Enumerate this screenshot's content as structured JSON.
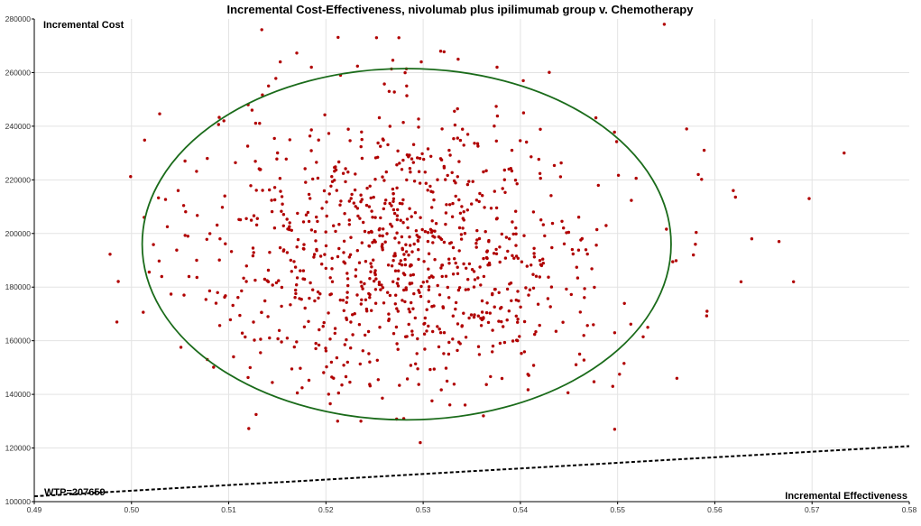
{
  "chart_data": {
    "type": "scatter",
    "title": "Incremental Cost-Effectiveness, nivolumab plus ipilimumab group v. Chemotherapy",
    "xlabel": "Incremental Effectiveness",
    "ylabel": "Incremental Cost",
    "xlim": [
      0.49,
      0.58
    ],
    "ylim": [
      100000,
      280000
    ],
    "x_ticks": [
      "0.49",
      "0.50",
      "0.51",
      "0.52",
      "0.53",
      "0.54",
      "0.55",
      "0.56",
      "0.57",
      "0.58"
    ],
    "y_ticks": [
      "100000",
      "120000",
      "140000",
      "160000",
      "180000",
      "200000",
      "220000",
      "240000",
      "260000",
      "280000"
    ],
    "grid": true,
    "point_color": "#b00000",
    "ellipse_color": "#1a6b1a",
    "confidence_ellipse": {
      "center": [
        0.5283,
        196000
      ],
      "radius_x": 0.0272,
      "radius_y": 65500
    },
    "wtp": {
      "label": "WTP=207659",
      "slope_per_unit_effect": 207659,
      "line": {
        "x": [
          0.49,
          0.58
        ],
        "y": [
          102000,
          120700
        ]
      }
    },
    "n_points": 1000,
    "seed": 20240611,
    "distribution": {
      "mean_x": 0.5283,
      "sd_x": 0.0105,
      "mean_y": 193000,
      "sd_y": 26500
    },
    "series": [
      {
        "values": [
          [
            0.4985,
            167000
          ],
          [
            0.5013,
            206000
          ],
          [
            0.5048,
            216000
          ],
          [
            0.5055,
            227000
          ],
          [
            0.5058,
            199000
          ],
          [
            0.5054,
            177000
          ],
          [
            0.5067,
            190000
          ],
          [
            0.5095,
            242000
          ],
          [
            0.512,
            248000
          ],
          [
            0.5134,
            276000
          ],
          [
            0.5153,
            264000
          ],
          [
            0.5185,
            262000
          ],
          [
            0.5215,
            259000
          ],
          [
            0.5252,
            273000
          ],
          [
            0.5275,
            273000
          ],
          [
            0.5298,
            264000
          ],
          [
            0.5318,
            268000
          ],
          [
            0.5336,
            265000
          ],
          [
            0.5376,
            262000
          ],
          [
            0.5548,
            278000
          ],
          [
            0.5571,
            239000
          ],
          [
            0.5589,
            231000
          ],
          [
            0.5583,
            222000
          ],
          [
            0.558,
            196000
          ],
          [
            0.5578,
            192000
          ],
          [
            0.5592,
            171000
          ],
          [
            0.5561,
            146000
          ],
          [
            0.5531,
            165000
          ],
          [
            0.5619,
            216000
          ],
          [
            0.5638,
            198000
          ],
          [
            0.5627,
            182000
          ],
          [
            0.5666,
            197000
          ],
          [
            0.5681,
            182000
          ],
          [
            0.5697,
            213000
          ],
          [
            0.5733,
            230000
          ],
          [
            0.5497,
            127000
          ],
          [
            0.5297,
            122000
          ],
          [
            0.5362,
            132000
          ],
          [
            0.5212,
            130000
          ],
          [
            0.5236,
            130000
          ],
          [
            0.528,
            131000
          ],
          [
            0.5122,
            150000
          ],
          [
            0.5105,
            154000
          ],
          [
            0.5078,
            153000
          ],
          [
            0.5087,
            174000
          ],
          [
            0.5091,
            198000
          ],
          [
            0.5096,
            214000
          ],
          [
            0.5078,
            228000
          ],
          [
            0.5124,
            246000
          ],
          [
            0.5141,
            255000
          ],
          [
            0.5283,
            255000
          ],
          [
            0.5265,
            253000
          ],
          [
            0.5403,
            257000
          ],
          [
            0.5497,
            163000
          ],
          [
            0.5495,
            143000
          ],
          [
            0.5461,
            155000
          ]
        ]
      }
    ]
  }
}
